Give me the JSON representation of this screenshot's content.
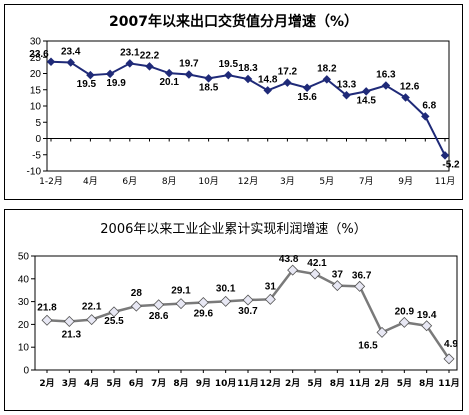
{
  "chart_data": [
    {
      "type": "line",
      "title": "2007年以来出口交货值分月增速（%）",
      "categories": [
        "1-2月",
        "3月",
        "4月",
        "5月",
        "6月",
        "7月",
        "8月",
        "9月",
        "10月",
        "11月",
        "12月",
        "1-2月",
        "3月",
        "4月",
        "5月",
        "6月",
        "7月",
        "8月",
        "9月",
        "10月",
        "11月"
      ],
      "x_tick_labels": [
        "1-2月",
        "",
        "4月",
        "",
        "6月",
        "",
        "8月",
        "",
        "10月",
        "",
        "12月",
        "",
        "3月",
        "",
        "5月",
        "",
        "7月",
        "",
        "9月",
        "",
        "11月"
      ],
      "values": [
        23.6,
        23.4,
        19.5,
        19.9,
        23.1,
        22.2,
        20.1,
        19.7,
        18.5,
        19.5,
        18.3,
        14.8,
        17.2,
        15.6,
        18.2,
        13.3,
        14.5,
        16.3,
        12.6,
        6.8,
        -5.2
      ],
      "ylim": [
        -10,
        30
      ],
      "yticks": [
        -10,
        -5,
        0,
        5,
        10,
        15,
        20,
        25,
        30
      ],
      "line_color": "#1f2a78",
      "marker_color": "#1f2a78",
      "grid": false
    },
    {
      "type": "line",
      "title": "2006年以来工业企业累计实现利润增速（%）",
      "categories": [
        "2月",
        "3月",
        "4月",
        "5月",
        "6月",
        "7月",
        "8月",
        "9月",
        "10月",
        "11月",
        "12月",
        "2月",
        "5月",
        "8月",
        "11月",
        "2月",
        "5月",
        "8月",
        "11月"
      ],
      "x_points": [
        0,
        1,
        2,
        3,
        4,
        5,
        6,
        7,
        8,
        9,
        10,
        11,
        12,
        13,
        14,
        15,
        16,
        17,
        18
      ],
      "values": [
        21.8,
        21.3,
        22.1,
        25.5,
        28,
        28.6,
        29.1,
        29.6,
        30.1,
        30.7,
        31,
        43.8,
        42.1,
        37,
        36.7,
        16.5,
        20.9,
        19.4,
        4.9
      ],
      "ylim": [
        0,
        50
      ],
      "yticks": [
        0,
        10,
        20,
        30,
        40,
        50
      ],
      "line_color": "#7a7a7a",
      "marker_color": "#e8e8f4",
      "grid": false
    }
  ]
}
